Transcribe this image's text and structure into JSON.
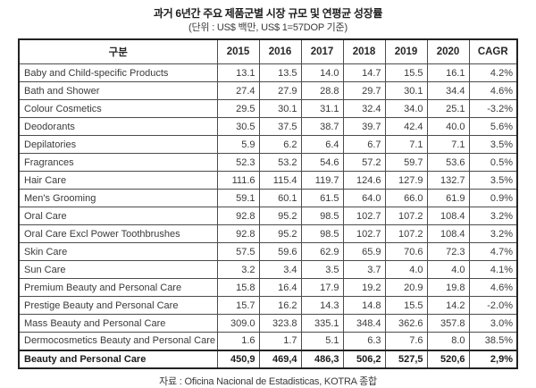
{
  "header": {
    "title": "과거 6년간 주요 제품군별 시장 규모 및 연평균 성장률",
    "subtitle": "(단위 : US$ 백만, US$ 1=57DOP 기준)"
  },
  "footer": {
    "source": "자료 : Oficina Nacional de Estadisticas, KOTRA 종합"
  },
  "chart_data": {
    "type": "table",
    "columns": [
      "구분",
      "2015",
      "2016",
      "2017",
      "2018",
      "2019",
      "2020",
      "CAGR"
    ],
    "rows": [
      {
        "category": "Baby and Child-specific Products",
        "values": [
          "13.1",
          "13.5",
          "14.0",
          "14.7",
          "15.5",
          "16.1"
        ],
        "cagr": "4.2%"
      },
      {
        "category": "Bath and Shower",
        "values": [
          "27.4",
          "27.9",
          "28.8",
          "29.7",
          "30.1",
          "34.4"
        ],
        "cagr": "4.6%"
      },
      {
        "category": "Colour Cosmetics",
        "values": [
          "29.5",
          "30.1",
          "31.1",
          "32.4",
          "34.0",
          "25.1"
        ],
        "cagr": "-3.2%"
      },
      {
        "category": "Deodorants",
        "values": [
          "30.5",
          "37.5",
          "38.7",
          "39.7",
          "42.4",
          "40.0"
        ],
        "cagr": "5.6%"
      },
      {
        "category": "Depilatories",
        "values": [
          "5.9",
          "6.2",
          "6.4",
          "6.7",
          "7.1",
          "7.1"
        ],
        "cagr": "3.5%"
      },
      {
        "category": "Fragrances",
        "values": [
          "52.3",
          "53.2",
          "54.6",
          "57.2",
          "59.7",
          "53.6"
        ],
        "cagr": "0.5%"
      },
      {
        "category": "Hair Care",
        "values": [
          "111.6",
          "115.4",
          "119.7",
          "124.6",
          "127.9",
          "132.7"
        ],
        "cagr": "3.5%"
      },
      {
        "category": "Men's Grooming",
        "values": [
          "59.1",
          "60.1",
          "61.5",
          "64.0",
          "66.0",
          "61.9"
        ],
        "cagr": "0.9%"
      },
      {
        "category": "Oral Care",
        "values": [
          "92.8",
          "95.2",
          "98.5",
          "102.7",
          "107.2",
          "108.4"
        ],
        "cagr": "3.2%"
      },
      {
        "category": "Oral Care Excl Power Toothbrushes",
        "values": [
          "92.8",
          "95.2",
          "98.5",
          "102.7",
          "107.2",
          "108.4"
        ],
        "cagr": "3.2%"
      },
      {
        "category": "Skin Care",
        "values": [
          "57.5",
          "59.6",
          "62.9",
          "65.9",
          "70.6",
          "72.3"
        ],
        "cagr": "4.7%"
      },
      {
        "category": "Sun Care",
        "values": [
          "3.2",
          "3.4",
          "3.5",
          "3.7",
          "4.0",
          "4.0"
        ],
        "cagr": "4.1%"
      },
      {
        "category": "Premium Beauty and Personal Care",
        "values": [
          "15.8",
          "16.4",
          "17.9",
          "19.2",
          "20.9",
          "19.8"
        ],
        "cagr": "4.6%"
      },
      {
        "category": "Prestige Beauty and Personal Care",
        "values": [
          "15.7",
          "16.2",
          "14.3",
          "14.8",
          "15.5",
          "14.2"
        ],
        "cagr": "-2.0%"
      },
      {
        "category": "Mass Beauty and Personal Care",
        "values": [
          "309.0",
          "323.8",
          "335.1",
          "348.4",
          "362.6",
          "357.8"
        ],
        "cagr": "3.0%"
      },
      {
        "category": "Dermocosmetics Beauty and Personal Care",
        "values": [
          "1.6",
          "1.7",
          "5.1",
          "6.3",
          "7.6",
          "8.0"
        ],
        "cagr": "38.5%"
      }
    ],
    "total_row": {
      "category": "Beauty and Personal Care",
      "values": [
        "450,9",
        "469,4",
        "486,3",
        "506,2",
        "527,5",
        "520,6"
      ],
      "cagr": "2,9%"
    }
  }
}
